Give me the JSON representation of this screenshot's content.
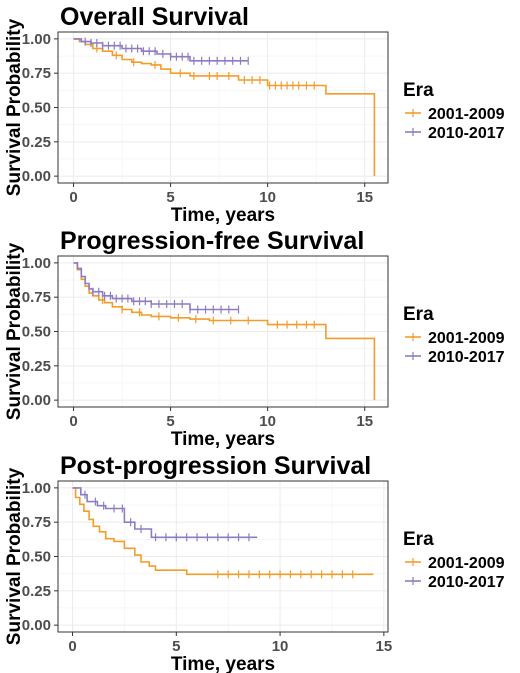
{
  "chart_data": [
    {
      "type": "line",
      "title": "Overall Survival",
      "xlabel": "Time, years",
      "ylabel": "Survival Probability",
      "xlim": [
        -0.8,
        16.2
      ],
      "ylim": [
        -0.05,
        1.05
      ],
      "xticks": [
        0,
        5,
        10,
        15
      ],
      "yticks": [
        0.0,
        0.25,
        0.5,
        0.75,
        1.0
      ],
      "ytick_labels": [
        "0.00",
        "0.25",
        "0.50",
        "0.75",
        "1.00"
      ],
      "grid": true,
      "legend": {
        "title": "Era",
        "position": "right"
      },
      "series": [
        {
          "name": "2001-2009",
          "color": "#F39C2A",
          "x": [
            0,
            0.3,
            0.6,
            1.0,
            1.5,
            2.0,
            2.5,
            3.0,
            3.5,
            4.0,
            4.5,
            5.0,
            6.0,
            8.5,
            10.0,
            13.0,
            15.5,
            15.5
          ],
          "y": [
            1.0,
            0.98,
            0.96,
            0.93,
            0.91,
            0.88,
            0.85,
            0.83,
            0.82,
            0.81,
            0.78,
            0.75,
            0.73,
            0.7,
            0.66,
            0.6,
            0.6,
            0.0
          ],
          "censor_x": [
            1.2,
            2.2,
            3.1,
            4.2,
            5.5,
            6.2,
            7.0,
            7.4,
            8.0,
            8.8,
            9.2,
            9.6,
            10.1,
            10.4,
            10.7,
            11.0,
            11.3,
            11.6,
            12.0,
            12.4
          ]
        },
        {
          "name": "2010-2017",
          "color": "#8E7CC3",
          "x": [
            0,
            0.4,
            0.9,
            1.5,
            2.5,
            3.5,
            4.3,
            5.0,
            6.0,
            9.0
          ],
          "y": [
            1.0,
            0.98,
            0.97,
            0.95,
            0.93,
            0.91,
            0.89,
            0.87,
            0.84,
            0.84
          ],
          "censor_x": [
            0.6,
            0.9,
            1.2,
            1.5,
            1.8,
            2.1,
            2.4,
            2.7,
            3.0,
            3.3,
            3.6,
            3.9,
            4.2,
            4.6,
            5.0,
            5.3,
            5.6,
            5.9,
            6.2,
            6.6,
            7.0,
            7.4,
            7.8,
            8.2,
            8.6,
            9.0
          ]
        }
      ]
    },
    {
      "type": "line",
      "title": "Progression-free Survival",
      "xlabel": "Time, years",
      "ylabel": "Survival Probability",
      "xlim": [
        -0.8,
        16.2
      ],
      "ylim": [
        -0.05,
        1.05
      ],
      "xticks": [
        0,
        5,
        10,
        15
      ],
      "yticks": [
        0.0,
        0.25,
        0.5,
        0.75,
        1.0
      ],
      "ytick_labels": [
        "0.00",
        "0.25",
        "0.50",
        "0.75",
        "1.00"
      ],
      "grid": true,
      "legend": {
        "title": "Era",
        "position": "right"
      },
      "series": [
        {
          "name": "2001-2009",
          "color": "#F39C2A",
          "x": [
            0,
            0.2,
            0.4,
            0.6,
            0.8,
            1.0,
            1.3,
            1.6,
            2.0,
            2.5,
            3.0,
            3.5,
            4.0,
            5.0,
            6.0,
            7.0,
            10.0,
            13.0,
            15.5,
            15.5
          ],
          "y": [
            1.0,
            0.95,
            0.88,
            0.83,
            0.78,
            0.76,
            0.73,
            0.71,
            0.68,
            0.66,
            0.64,
            0.62,
            0.61,
            0.6,
            0.59,
            0.58,
            0.55,
            0.45,
            0.45,
            0.0
          ],
          "censor_x": [
            1.5,
            2.5,
            3.4,
            4.4,
            5.4,
            6.3,
            7.2,
            8.1,
            9.0,
            10.5,
            11.0,
            11.5,
            12.0,
            12.4
          ]
        },
        {
          "name": "2010-2017",
          "color": "#8E7CC3",
          "x": [
            0,
            0.2,
            0.4,
            0.6,
            0.8,
            1.0,
            1.5,
            2.0,
            3.0,
            4.0,
            6.0,
            8.5
          ],
          "y": [
            1.0,
            0.96,
            0.9,
            0.85,
            0.81,
            0.79,
            0.76,
            0.74,
            0.72,
            0.7,
            0.66,
            0.66
          ],
          "censor_x": [
            1.0,
            1.3,
            1.6,
            1.9,
            2.2,
            2.5,
            2.8,
            3.1,
            3.4,
            3.7,
            4.0,
            4.4,
            4.8,
            5.2,
            5.6,
            6.0,
            6.4,
            6.8,
            7.2,
            7.6,
            8.0,
            8.5
          ]
        }
      ]
    },
    {
      "type": "line",
      "title": "Post-progression Survival",
      "xlabel": "Time, years",
      "ylabel": "Survival Probability",
      "xlim": [
        -0.7,
        15.2
      ],
      "ylim": [
        -0.05,
        1.05
      ],
      "xticks": [
        0,
        5,
        10,
        15
      ],
      "yticks": [
        0.0,
        0.25,
        0.5,
        0.75,
        1.0
      ],
      "ytick_labels": [
        "0.00",
        "0.25",
        "0.50",
        "0.75",
        "1.00"
      ],
      "grid": true,
      "legend": {
        "title": "Era",
        "position": "right"
      },
      "series": [
        {
          "name": "2001-2009",
          "color": "#F39C2A",
          "x": [
            0,
            0.15,
            0.35,
            0.55,
            0.8,
            1.0,
            1.3,
            1.6,
            2.0,
            2.5,
            3.0,
            3.3,
            3.7,
            4.0,
            5.5,
            14.5
          ],
          "y": [
            1.0,
            0.93,
            0.88,
            0.83,
            0.77,
            0.72,
            0.68,
            0.63,
            0.61,
            0.56,
            0.51,
            0.46,
            0.43,
            0.4,
            0.37,
            0.37
          ],
          "censor_x": [
            7.0,
            7.5,
            8.0,
            8.5,
            9.0,
            9.5,
            10.0,
            10.5,
            11.0,
            11.5,
            12.0,
            12.5,
            13.0,
            13.5
          ]
        },
        {
          "name": "2010-2017",
          "color": "#8E7CC3",
          "x": [
            0,
            0.4,
            0.7,
            1.2,
            1.6,
            2.5,
            3.0,
            3.8,
            8.9
          ],
          "y": [
            1.0,
            0.95,
            0.9,
            0.87,
            0.85,
            0.75,
            0.7,
            0.64,
            0.64
          ],
          "censor_x": [
            0.6,
            1.1,
            1.5,
            2.0,
            2.4,
            2.8,
            3.3,
            4.0,
            4.5,
            5.0,
            5.5,
            6.0,
            6.5,
            7.0,
            7.5,
            8.0,
            8.5
          ]
        }
      ]
    }
  ]
}
